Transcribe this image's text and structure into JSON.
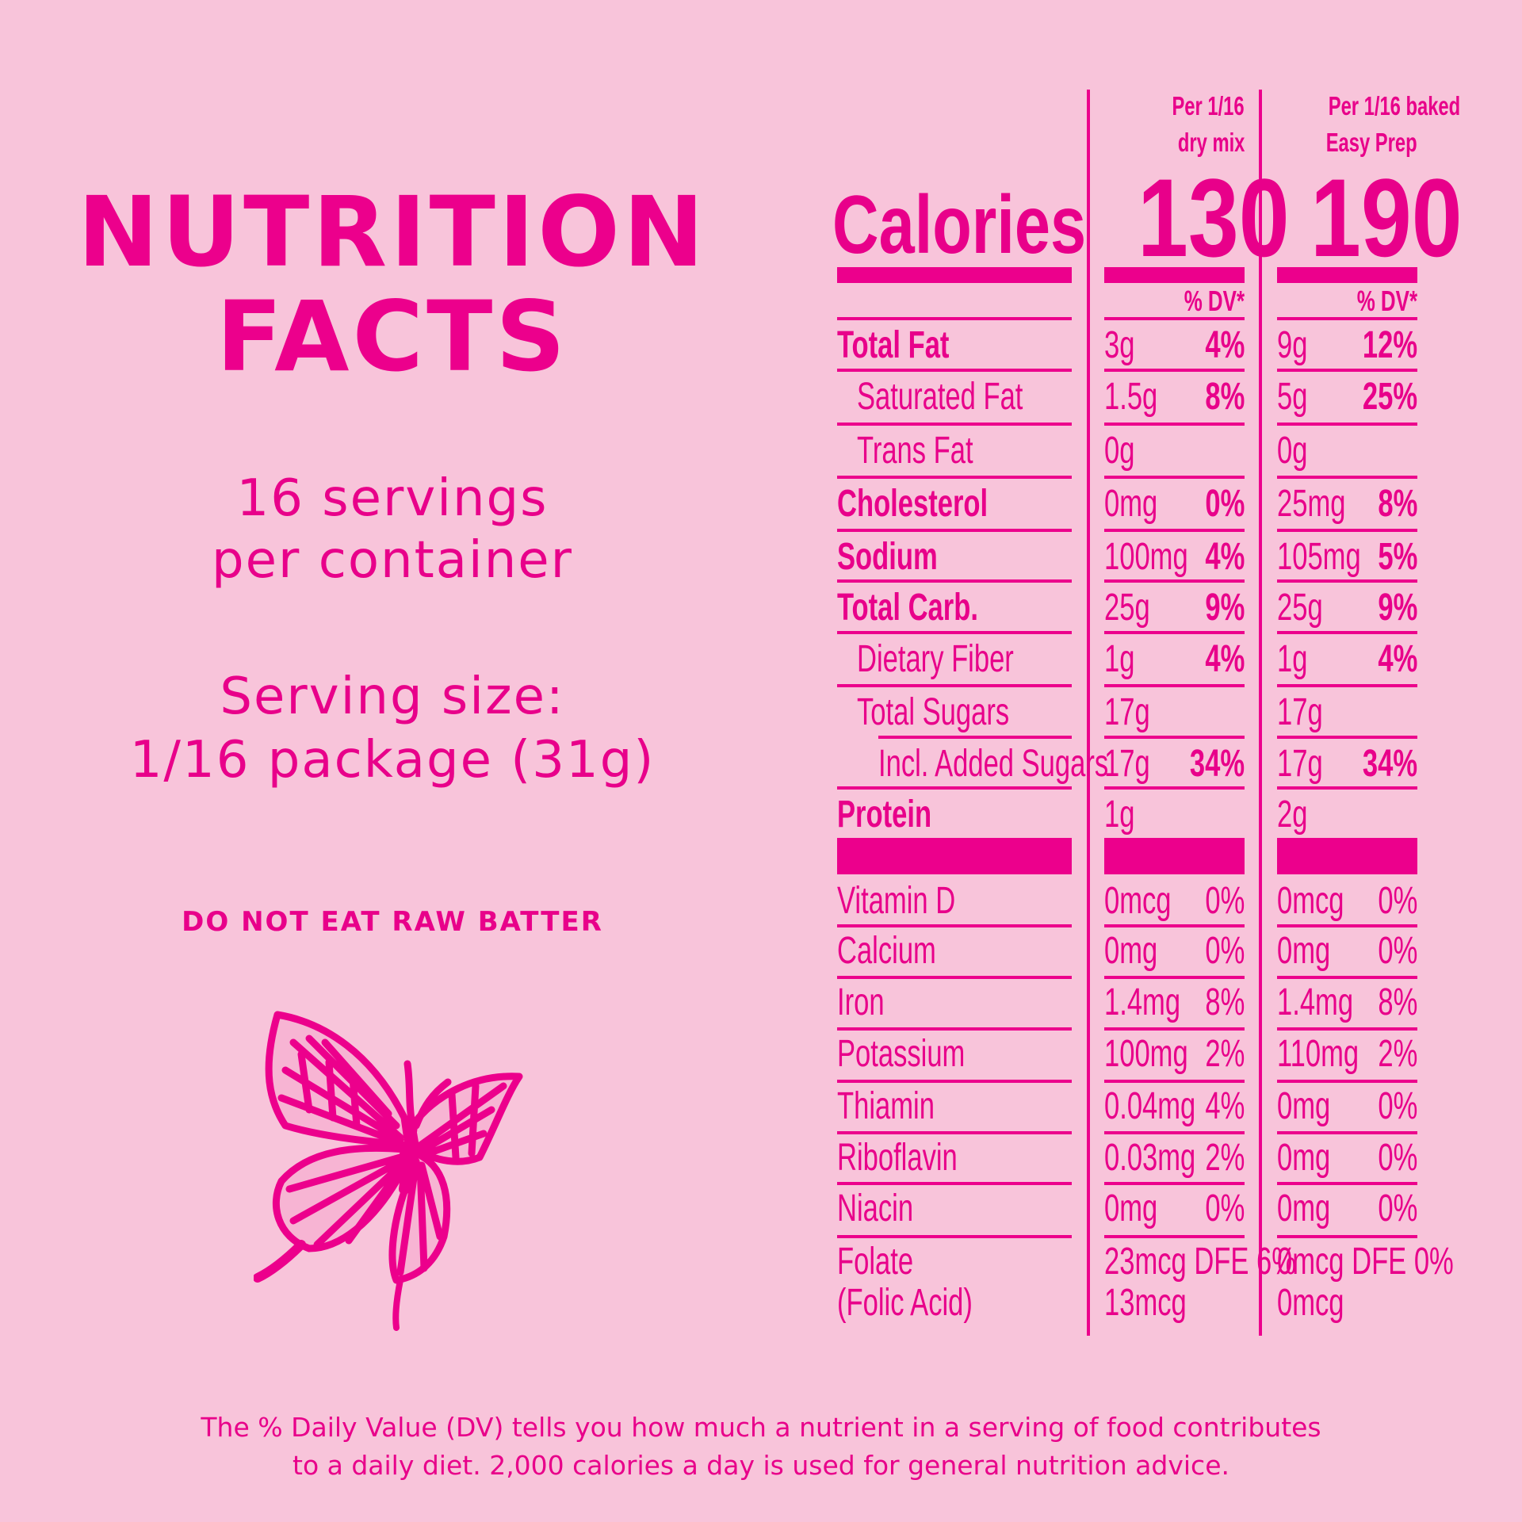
{
  "colors": {
    "background": "#f8c4da",
    "accent": "#ec008c"
  },
  "left": {
    "title_line1": "NUTRITION",
    "title_line2": "FACTS",
    "servings_line1": "16 servings",
    "servings_line2": "per container",
    "serving_size_label": "Serving size:",
    "serving_size_value": "1/16 package (31g)",
    "warning": "DO NOT EAT RAW BATTER",
    "icon": "butterfly-icon"
  },
  "table": {
    "calories_label": "Calories",
    "columns": [
      {
        "header_line1": "Per 1/16",
        "header_line2": "dry mix",
        "calories": "130",
        "dv_header": "% DV*"
      },
      {
        "header_line1": "Per 1/16 baked",
        "header_line2": "Easy Prep",
        "calories": "190",
        "dv_header": "% DV*"
      }
    ],
    "rows": [
      {
        "label": "Total Fat",
        "bold": true,
        "indent": 0,
        "c1_amt": "3g",
        "c1_dv": "4%",
        "c2_amt": "9g",
        "c2_dv": "12%"
      },
      {
        "label": "Saturated Fat",
        "bold": false,
        "indent": 1,
        "c1_amt": "1.5g",
        "c1_dv": "8%",
        "c2_amt": "5g",
        "c2_dv": "25%"
      },
      {
        "label": "Trans Fat",
        "bold": false,
        "indent": 1,
        "c1_amt": "0g",
        "c1_dv": "",
        "c2_amt": "0g",
        "c2_dv": ""
      },
      {
        "label": "Cholesterol",
        "bold": true,
        "indent": 0,
        "c1_amt": "0mg",
        "c1_dv": "0%",
        "c2_amt": "25mg",
        "c2_dv": "8%"
      },
      {
        "label": "Sodium",
        "bold": true,
        "indent": 0,
        "c1_amt": "100mg",
        "c1_dv": "4%",
        "c2_amt": "105mg",
        "c2_dv": "5%"
      },
      {
        "label": "Total Carb.",
        "bold": true,
        "indent": 0,
        "c1_amt": "25g",
        "c1_dv": "9%",
        "c2_amt": "25g",
        "c2_dv": "9%"
      },
      {
        "label": "Dietary Fiber",
        "bold": false,
        "indent": 1,
        "c1_amt": "1g",
        "c1_dv": "4%",
        "c2_amt": "1g",
        "c2_dv": "4%"
      },
      {
        "label": "Total Sugars",
        "bold": false,
        "indent": 1,
        "c1_amt": "17g",
        "c1_dv": "",
        "c2_amt": "17g",
        "c2_dv": ""
      },
      {
        "label": "Incl. Added Sugars",
        "bold": false,
        "indent": 2,
        "c1_amt": "17g",
        "c1_dv": "34%",
        "c2_amt": "17g",
        "c2_dv": "34%"
      },
      {
        "label": "Protein",
        "bold": true,
        "indent": 0,
        "c1_amt": "1g",
        "c1_dv": "",
        "c2_amt": "2g",
        "c2_dv": ""
      }
    ],
    "vitamins": [
      {
        "label": "Vitamin D",
        "c1_amt": "0mcg",
        "c1_dv": "0%",
        "c2_amt": "0mcg",
        "c2_dv": "0%"
      },
      {
        "label": "Calcium",
        "c1_amt": "0mg",
        "c1_dv": "0%",
        "c2_amt": "0mg",
        "c2_dv": "0%"
      },
      {
        "label": "Iron",
        "c1_amt": "1.4mg",
        "c1_dv": "8%",
        "c2_amt": "1.4mg",
        "c2_dv": "8%"
      },
      {
        "label": "Potassium",
        "c1_amt": "100mg",
        "c1_dv": "2%",
        "c2_amt": "110mg",
        "c2_dv": "2%"
      },
      {
        "label": "Thiamin",
        "c1_amt": "0.04mg",
        "c1_dv": "4%",
        "c2_amt": "0mg",
        "c2_dv": "0%"
      },
      {
        "label": "Riboflavin",
        "c1_amt": "0.03mg",
        "c1_dv": "2%",
        "c2_amt": "0mg",
        "c2_dv": "0%"
      },
      {
        "label": "Niacin",
        "c1_amt": "0mg",
        "c1_dv": "0%",
        "c2_amt": "0mg",
        "c2_dv": "0%"
      }
    ],
    "folate": {
      "label_line1": "Folate",
      "label_line2": "(Folic Acid)",
      "c1_line1": "23mcg DFE 6%",
      "c1_line2": "13mcg",
      "c2_line1": "0mcg DFE 0%",
      "c2_line2": "0mcg"
    }
  },
  "footer": {
    "line1": "The % Daily Value (DV) tells you how much a nutrient in a serving of food contributes",
    "line2": "to a daily diet. 2,000 calories a day is used for general nutrition advice."
  }
}
